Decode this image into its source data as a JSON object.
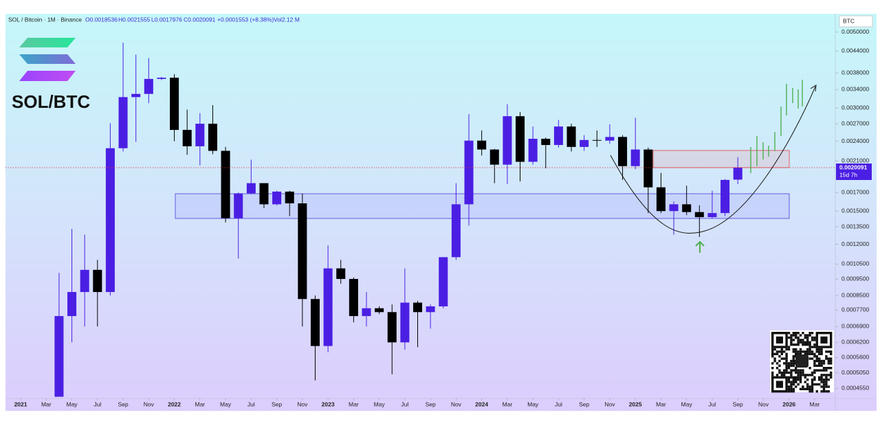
{
  "header": {
    "symbol": "SOL / Bitcoin · 1M · Binance",
    "open": "O0.0018536",
    "high": "H0.0021555",
    "low": "L0.0017976",
    "close": "C0.0020091",
    "change": "+0.0001553 (+8.38%)",
    "volume": "Vol2.12 M"
  },
  "logo_text": "SOL/BTC",
  "currency": "BTC",
  "price_tag": {
    "price": "0.0020091",
    "countdown": "15d 7h"
  },
  "chart_data": {
    "type": "candlestick",
    "log_scale": true,
    "up_color": "#4b1fe3",
    "down_color": "#000000",
    "x": [
      "2021-04",
      "2021-05",
      "2021-06",
      "2021-07",
      "2021-08",
      "2021-09",
      "2021-10",
      "2021-11",
      "2021-12",
      "2022-01",
      "2022-02",
      "2022-03",
      "2022-04",
      "2022-05",
      "2022-06",
      "2022-07",
      "2022-08",
      "2022-09",
      "2022-10",
      "2022-11",
      "2022-12",
      "2023-01",
      "2023-02",
      "2023-03",
      "2023-04",
      "2023-05",
      "2023-06",
      "2023-07",
      "2023-08",
      "2023-09",
      "2023-10",
      "2023-11",
      "2023-12",
      "2024-01",
      "2024-02",
      "2024-03",
      "2024-04",
      "2024-05",
      "2024-06",
      "2024-07",
      "2024-08",
      "2024-09",
      "2024-10",
      "2024-11",
      "2024-12",
      "2025-01",
      "2025-02",
      "2025-03",
      "2025-04",
      "2025-05",
      "2025-06",
      "2025-07",
      "2025-08",
      "2025-09"
    ],
    "open": [
      0.00043,
      0.00074,
      0.00087,
      0.00101,
      0.00087,
      0.00229,
      0.00323,
      0.0033,
      0.00365,
      0.00368,
      0.00259,
      0.00232,
      0.0027,
      0.00225,
      0.00143,
      0.00169,
      0.00181,
      0.00157,
      0.00171,
      0.00158,
      0.00083,
      0.000605,
      0.00102,
      0.00095,
      0.00074,
      0.00078,
      0.00076,
      0.00062,
      0.00081,
      0.00076,
      0.00079,
      0.0011,
      0.00157,
      0.00241,
      0.00227,
      0.00205,
      0.00284,
      0.00209,
      0.00244,
      0.00234,
      0.00265,
      0.00231,
      0.00242,
      0.00241,
      0.00247,
      0.00203,
      0.00227,
      0.00176,
      0.0015,
      0.00157,
      0.00149,
      0.00144,
      0.00148,
      0.0018536
    ],
    "high": [
      0.00099,
      0.00133,
      0.00128,
      0.00108,
      0.00271,
      0.00466,
      0.0043,
      0.0042,
      0.0037,
      0.00377,
      0.00297,
      0.0029,
      0.00306,
      0.00231,
      0.0017,
      0.00212,
      0.00181,
      0.00172,
      0.00172,
      0.00169,
      0.00085,
      0.00119,
      0.00108,
      0.00096,
      0.00087,
      0.00079,
      0.0008,
      0.00102,
      0.00082,
      0.0008,
      0.0011,
      0.00181,
      0.00288,
      0.00258,
      0.00228,
      0.00308,
      0.00292,
      0.00265,
      0.00246,
      0.00277,
      0.0027,
      0.0025,
      0.00258,
      0.00269,
      0.0025,
      0.00281,
      0.0023,
      0.00194,
      0.0016,
      0.00178,
      0.00156,
      0.00172,
      0.00186,
      0.0021555
    ],
    "low": [
      0.00043,
      0.00062,
      0.00069,
      0.00069,
      0.00085,
      0.00224,
      0.00239,
      0.0031,
      0.00362,
      0.0024,
      0.00219,
      0.00204,
      0.0022,
      0.00139,
      0.00109,
      0.00168,
      0.00153,
      0.00156,
      0.00145,
      0.00069,
      0.00048,
      0.00058,
      0.00092,
      0.00071,
      0.00069,
      0.00075,
      0.0005,
      0.00059,
      0.0006,
      0.00068,
      0.00078,
      0.00108,
      0.00136,
      0.00218,
      0.00181,
      0.0018,
      0.00183,
      0.00205,
      0.002,
      0.0023,
      0.00224,
      0.00225,
      0.00231,
      0.00236,
      0.00185,
      0.00199,
      0.00148,
      0.00148,
      0.00128,
      0.00146,
      0.00126,
      0.00143,
      0.00145,
      0.0017976
    ],
    "close": [
      0.00074,
      0.00087,
      0.00101,
      0.00087,
      0.00229,
      0.00323,
      0.0033,
      0.00365,
      0.00368,
      0.00259,
      0.00232,
      0.0027,
      0.00225,
      0.00143,
      0.00169,
      0.00181,
      0.00157,
      0.00171,
      0.00158,
      0.00083,
      0.000605,
      0.00102,
      0.00095,
      0.00074,
      0.00078,
      0.00076,
      0.00062,
      0.00081,
      0.00076,
      0.00079,
      0.0011,
      0.00157,
      0.00241,
      0.00227,
      0.00205,
      0.00284,
      0.00209,
      0.00244,
      0.00234,
      0.00265,
      0.00231,
      0.00242,
      0.00241,
      0.00247,
      0.00203,
      0.00227,
      0.00176,
      0.0015,
      0.00157,
      0.00149,
      0.00144,
      0.00148,
      0.00185,
      0.0020091
    ],
    "xlim": [
      "2020-12",
      "2026-04"
    ],
    "xticks": [
      {
        "value": "2021-01",
        "label": "2021"
      },
      {
        "value": "2021-03",
        "label": "Mar"
      },
      {
        "value": "2021-05",
        "label": "May"
      },
      {
        "value": "2021-07",
        "label": "Jul"
      },
      {
        "value": "2021-09",
        "label": "Sep"
      },
      {
        "value": "2021-11",
        "label": "Nov"
      },
      {
        "value": "2022-01",
        "label": "2022"
      },
      {
        "value": "2022-03",
        "label": "Mar"
      },
      {
        "value": "2022-05",
        "label": "May"
      },
      {
        "value": "2022-07",
        "label": "Jul"
      },
      {
        "value": "2022-09",
        "label": "Sep"
      },
      {
        "value": "2022-11",
        "label": "Nov"
      },
      {
        "value": "2023-01",
        "label": "2023"
      },
      {
        "value": "2023-03",
        "label": "Mar"
      },
      {
        "value": "2023-05",
        "label": "May"
      },
      {
        "value": "2023-07",
        "label": "Jul"
      },
      {
        "value": "2023-09",
        "label": "Sep"
      },
      {
        "value": "2023-11",
        "label": "Nov"
      },
      {
        "value": "2024-01",
        "label": "2024"
      },
      {
        "value": "2024-03",
        "label": "Mar"
      },
      {
        "value": "2024-05",
        "label": "May"
      },
      {
        "value": "2024-07",
        "label": "Jul"
      },
      {
        "value": "2024-09",
        "label": "Sep"
      },
      {
        "value": "2024-11",
        "label": "Nov"
      },
      {
        "value": "2025-01",
        "label": "2025"
      },
      {
        "value": "2025-03",
        "label": "Mar"
      },
      {
        "value": "2025-05",
        "label": "May"
      },
      {
        "value": "2025-07",
        "label": "Jul"
      },
      {
        "value": "2025-09",
        "label": "Sep"
      },
      {
        "value": "2025-11",
        "label": "Nov"
      },
      {
        "value": "2026-01",
        "label": "2026"
      },
      {
        "value": "2026-03",
        "label": "Mar"
      }
    ],
    "ylim": [
      0.000429,
      0.00566
    ],
    "yticks": [
      {
        "value": 0.005,
        "label": "0.0050000"
      },
      {
        "value": 0.0044,
        "label": "0.0044000"
      },
      {
        "value": 0.0038,
        "label": "0.0038000"
      },
      {
        "value": 0.0034,
        "label": "0.0034000"
      },
      {
        "value": 0.003,
        "label": "0.0030000"
      },
      {
        "value": 0.0027,
        "label": "0.0027000"
      },
      {
        "value": 0.0024,
        "label": "0.0024000"
      },
      {
        "value": 0.0021,
        "label": "0.0021000"
      },
      {
        "value": 0.0017,
        "label": "0.0017000"
      },
      {
        "value": 0.0015,
        "label": "0.0015000"
      },
      {
        "value": 0.00135,
        "label": "0.0013500"
      },
      {
        "value": 0.0012,
        "label": "0.0012000"
      },
      {
        "value": 0.00105,
        "label": "0.0010500"
      },
      {
        "value": 0.00095,
        "label": "0.0009500"
      },
      {
        "value": 0.00085,
        "label": "0.0008500"
      },
      {
        "value": 0.00077,
        "label": "0.0007700"
      },
      {
        "value": 0.00069,
        "label": "0.0006900"
      },
      {
        "value": 0.00062,
        "label": "0.0006200"
      },
      {
        "value": 0.00056,
        "label": "0.0005600"
      },
      {
        "value": 0.000505,
        "label": "0.0005050"
      },
      {
        "value": 0.000455,
        "label": "0.0004550"
      }
    ]
  }
}
